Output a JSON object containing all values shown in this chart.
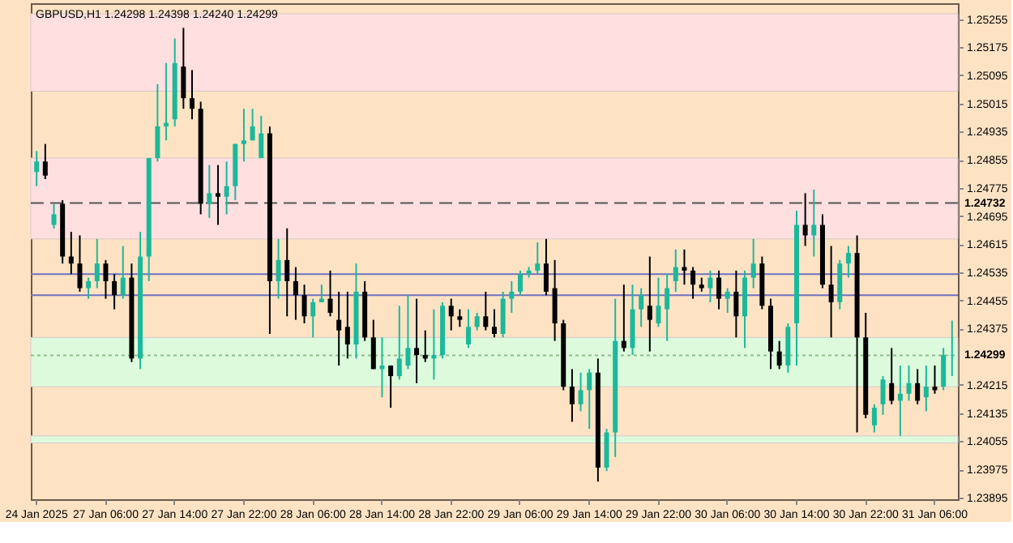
{
  "chart_data": {
    "type": "candlestick",
    "title": "GBPUSD,H1  1.24298 1.24398 1.24240 1.24299",
    "categories": [
      "24 Jan 2025",
      null,
      null,
      null,
      null,
      null,
      null,
      null,
      "27 Jan 06:00",
      null,
      null,
      null,
      null,
      null,
      null,
      null,
      "27 Jan 14:00",
      null,
      null,
      null,
      null,
      null,
      null,
      null,
      "27 Jan 22:00",
      null,
      null,
      null,
      null,
      null,
      null,
      null,
      "28 Jan 06:00",
      null,
      null,
      null,
      null,
      null,
      null,
      null,
      "28 Jan 14:00",
      null,
      null,
      null,
      null,
      null,
      null,
      null,
      "28 Jan 22:00",
      null,
      null,
      null,
      null,
      null,
      null,
      null,
      "29 Jan 06:00",
      null,
      null,
      null,
      null,
      null,
      null,
      null,
      "29 Jan 14:00",
      null,
      null,
      null,
      null,
      null,
      null,
      null,
      "29 Jan 22:00",
      null,
      null,
      null,
      null,
      null,
      null,
      null,
      "30 Jan 06:00",
      null,
      null,
      null,
      null,
      null,
      null,
      null,
      "30 Jan 14:00",
      null,
      null,
      null,
      null,
      null,
      null,
      null,
      "30 Jan 22:00",
      null,
      null,
      null,
      null,
      null,
      null,
      null,
      "31 Jan 06:00",
      null,
      null
    ],
    "ohlc": [
      [
        1.2482,
        1.2488,
        1.2478,
        1.2485
      ],
      [
        1.2485,
        1.249,
        1.248,
        1.2481
      ],
      [
        1.2467,
        1.2473,
        1.2466,
        1.247
      ],
      [
        1.2473,
        1.2474,
        1.2456,
        1.2458
      ],
      [
        1.2458,
        1.2465,
        1.2453,
        1.2456
      ],
      [
        1.2456,
        1.2464,
        1.2448,
        1.2449
      ],
      [
        1.2449,
        1.2452,
        1.2446,
        1.2451
      ],
      [
        1.2451,
        1.2463,
        1.2449,
        1.2456
      ],
      [
        1.2456,
        1.2457,
        1.2446,
        1.2451
      ],
      [
        1.2451,
        1.2453,
        1.2443,
        1.2447
      ],
      [
        1.2447,
        1.2461,
        1.2446,
        1.2452
      ],
      [
        1.2452,
        1.2456,
        1.2428,
        1.2429
      ],
      [
        1.2429,
        1.2465,
        1.2426,
        1.2458
      ],
      [
        1.2458,
        1.2486,
        1.2451,
        1.2486
      ],
      [
        1.2486,
        1.2507,
        1.2485,
        1.2495
      ],
      [
        1.2495,
        1.2513,
        1.2491,
        1.2496
      ],
      [
        1.2497,
        1.252,
        1.2495,
        1.2513
      ],
      [
        1.2512,
        1.2523,
        1.25,
        1.2503
      ],
      [
        1.2503,
        1.2511,
        1.2497,
        1.25
      ],
      [
        1.25,
        1.2502,
        1.247,
        1.2473
      ],
      [
        1.2473,
        1.2484,
        1.2469,
        1.2476
      ],
      [
        1.2476,
        1.2484,
        1.2467,
        1.2475
      ],
      [
        1.2475,
        1.2485,
        1.247,
        1.2478
      ],
      [
        1.2478,
        1.249,
        1.2474,
        1.249
      ],
      [
        1.249,
        1.25,
        1.2485,
        1.2491
      ],
      [
        1.2491,
        1.25,
        1.2491,
        1.2495
      ],
      [
        1.2486,
        1.2498,
        1.2486,
        1.2493
      ],
      [
        1.2493,
        1.2495,
        1.2436,
        1.2451
      ],
      [
        1.2451,
        1.2463,
        1.2446,
        1.2457
      ],
      [
        1.2457,
        1.2466,
        1.2441,
        1.2451
      ],
      [
        1.2451,
        1.2455,
        1.244,
        1.2447
      ],
      [
        1.2447,
        1.245,
        1.2439,
        1.2441
      ],
      [
        1.2441,
        1.2446,
        1.2435,
        1.2445
      ],
      [
        1.2445,
        1.245,
        1.2445,
        1.2446
      ],
      [
        1.2446,
        1.2454,
        1.2441,
        1.2442
      ],
      [
        1.244,
        1.2448,
        1.2427,
        1.2437
      ],
      [
        1.2438,
        1.2448,
        1.2429,
        1.2433
      ],
      [
        1.2433,
        1.2456,
        1.2429,
        1.2448
      ],
      [
        1.2448,
        1.2451,
        1.2434,
        1.2435
      ],
      [
        1.2435,
        1.244,
        1.2426,
        1.2426
      ],
      [
        1.2426,
        1.2435,
        1.2418,
        1.2427
      ],
      [
        1.2427,
        1.2427,
        1.2415,
        1.2424
      ],
      [
        1.2424,
        1.2444,
        1.2423,
        1.2429
      ],
      [
        1.2427,
        1.2447,
        1.2426,
        1.2432
      ],
      [
        1.2432,
        1.2446,
        1.2422,
        1.243
      ],
      [
        1.243,
        1.2437,
        1.2428,
        1.2429
      ],
      [
        1.2429,
        1.2443,
        1.2423,
        1.243
      ],
      [
        1.243,
        1.2445,
        1.2429,
        1.2444
      ],
      [
        1.2444,
        1.2446,
        1.2437,
        1.2441
      ],
      [
        1.2441,
        1.2443,
        1.2438,
        1.244
      ],
      [
        1.2433,
        1.2443,
        1.2432,
        1.2438
      ],
      [
        1.2438,
        1.2442,
        1.2437,
        1.2441
      ],
      [
        1.2441,
        1.2448,
        1.2437,
        1.2438
      ],
      [
        1.2438,
        1.2443,
        1.2435,
        1.2436
      ],
      [
        1.2436,
        1.2448,
        1.2435,
        1.2446
      ],
      [
        1.2446,
        1.2451,
        1.2442,
        1.2448
      ],
      [
        1.2448,
        1.2454,
        1.2447,
        1.2453
      ],
      [
        1.2453,
        1.2455,
        1.2452,
        1.2454
      ],
      [
        1.2454,
        1.2462,
        1.2453,
        1.2456
      ],
      [
        1.2456,
        1.2463,
        1.2447,
        1.2448
      ],
      [
        1.2449,
        1.2457,
        1.2434,
        1.2439
      ],
      [
        1.2439,
        1.244,
        1.242,
        1.2421
      ],
      [
        1.2421,
        1.2426,
        1.2411,
        1.2416
      ],
      [
        1.2416,
        1.2425,
        1.2414,
        1.242
      ],
      [
        1.242,
        1.2426,
        1.2409,
        1.2425
      ],
      [
        1.2425,
        1.2429,
        1.2394,
        1.2398
      ],
      [
        1.2398,
        1.2409,
        1.2397,
        1.2408
      ],
      [
        1.2408,
        1.2446,
        1.2401,
        1.2434
      ],
      [
        1.2434,
        1.245,
        1.2431,
        1.2432
      ],
      [
        1.2432,
        1.245,
        1.243,
        1.2443
      ],
      [
        1.2443,
        1.2449,
        1.2438,
        1.2447
      ],
      [
        1.2444,
        1.2458,
        1.2431,
        1.244
      ],
      [
        1.2439,
        1.2452,
        1.2438,
        1.2444
      ],
      [
        1.2443,
        1.2453,
        1.2434,
        1.2449
      ],
      [
        1.2451,
        1.246,
        1.2448,
        1.2455
      ],
      [
        1.2455,
        1.246,
        1.245,
        1.2454
      ],
      [
        1.2454,
        1.2455,
        1.2446,
        1.245
      ],
      [
        1.245,
        1.2452,
        1.2448,
        1.2449
      ],
      [
        1.2449,
        1.2454,
        1.2445,
        1.2452
      ],
      [
        1.2452,
        1.2454,
        1.2443,
        1.2446
      ],
      [
        1.2446,
        1.2449,
        1.2442,
        1.2448
      ],
      [
        1.2448,
        1.2454,
        1.2435,
        1.2441
      ],
      [
        1.2441,
        1.2454,
        1.2432,
        1.2452
      ],
      [
        1.2452,
        1.2463,
        1.2449,
        1.2456
      ],
      [
        1.2456,
        1.2458,
        1.2443,
        1.2444
      ],
      [
        1.2444,
        1.2446,
        1.2426,
        1.2431
      ],
      [
        1.2431,
        1.2434,
        1.2426,
        1.2427
      ],
      [
        1.2427,
        1.2439,
        1.2425,
        1.2438
      ],
      [
        1.2439,
        1.2471,
        1.2427,
        1.2467
      ],
      [
        1.2467,
        1.2476,
        1.2461,
        1.2464
      ],
      [
        1.2464,
        1.2477,
        1.2458,
        1.2467
      ],
      [
        1.2467,
        1.247,
        1.2449,
        1.245
      ],
      [
        1.245,
        1.2461,
        1.2435,
        1.2445
      ],
      [
        1.2445,
        1.2457,
        1.2443,
        1.2456
      ],
      [
        1.2456,
        1.2461,
        1.2452,
        1.2459
      ],
      [
        1.2459,
        1.2464,
        1.2408,
        1.2435
      ],
      [
        1.2435,
        1.2442,
        1.2412,
        1.2413
      ],
      [
        1.241,
        1.2416,
        1.2408,
        1.2415
      ],
      [
        1.2416,
        1.2424,
        1.2413,
        1.2423
      ],
      [
        1.2422,
        1.2432,
        1.2416,
        1.2417
      ],
      [
        1.2417,
        1.2427,
        1.2407,
        1.2419
      ],
      [
        1.2419,
        1.2427,
        1.2417,
        1.2422
      ],
      [
        1.2422,
        1.2426,
        1.2416,
        1.2417
      ],
      [
        1.2418,
        1.2427,
        1.2414,
        1.2421
      ],
      [
        1.2421,
        1.2427,
        1.2419,
        1.242
      ],
      [
        1.2421,
        1.2432,
        1.242,
        1.243
      ],
      [
        1.24298,
        1.24398,
        1.2424,
        1.24299
      ]
    ],
    "colors": [
      "#1cb89a",
      "#000000",
      "#1cb89a",
      "#000000",
      "#000000",
      "#000000",
      "#1cb89a",
      "#1cb89a",
      "#000000",
      "#000000",
      "#1cb89a",
      "#000000",
      "#1cb89a",
      "#1cb89a",
      "#1cb89a",
      "#1cb89a",
      "#1cb89a",
      "#000000",
      "#000000",
      "#000000",
      "#1cb89a",
      "#000000",
      "#1cb89a",
      "#1cb89a",
      "#1cb89a",
      "#1cb89a",
      "#1cb89a",
      "#000000",
      "#1cb89a",
      "#000000",
      "#000000",
      "#000000",
      "#1cb89a",
      "#1cb89a",
      "#000000",
      "#000000",
      "#000000",
      "#1cb89a",
      "#000000",
      "#000000",
      "#1cb89a",
      "#000000",
      "#1cb89a",
      "#1cb89a",
      "#000000",
      "#000000",
      "#1cb89a",
      "#1cb89a",
      "#000000",
      "#000000",
      "#1cb89a",
      "#1cb89a",
      "#000000",
      "#000000",
      "#1cb89a",
      "#1cb89a",
      "#1cb89a",
      "#1cb89a",
      "#1cb89a",
      "#000000",
      "#000000",
      "#000000",
      "#000000",
      "#1cb89a",
      "#1cb89a",
      "#000000",
      "#1cb89a",
      "#1cb89a",
      "#000000",
      "#1cb89a",
      "#1cb89a",
      "#000000",
      "#1cb89a",
      "#1cb89a",
      "#1cb89a",
      "#000000",
      "#000000",
      "#000000",
      "#1cb89a",
      "#000000",
      "#1cb89a",
      "#000000",
      "#1cb89a",
      "#1cb89a",
      "#000000",
      "#000000",
      "#000000",
      "#1cb89a",
      "#1cb89a",
      "#000000",
      "#1cb89a",
      "#000000",
      "#000000",
      "#1cb89a",
      "#1cb89a",
      "#000000",
      "#000000",
      "#1cb89a",
      "#1cb89a",
      "#000000",
      "#1cb89a",
      "#1cb89a",
      "#000000",
      "#1cb89a",
      "#000000",
      "#1cb89a",
      "#1cb89a"
    ],
    "ylim": [
      1.2389,
      1.253
    ],
    "yticks": [
      1.25255,
      1.25175,
      1.25095,
      1.25015,
      1.24935,
      1.24855,
      1.24775,
      1.24695,
      1.24615,
      1.24535,
      1.24455,
      1.24375,
      1.24215,
      1.24135,
      1.24055,
      1.23975,
      1.23895
    ],
    "bands": [
      {
        "axis": "y",
        "from": 1.2505,
        "to": 1.2527,
        "color": "#ffdfe0"
      },
      {
        "axis": "y",
        "from": 1.2463,
        "to": 1.2486,
        "color": "#ffdfe0"
      },
      {
        "axis": "y",
        "from": 1.2421,
        "to": 1.2435,
        "color": "#ddfadd"
      },
      {
        "axis": "y",
        "from": 1.2405,
        "to": 1.2407,
        "color": "#ddfadd"
      }
    ],
    "ref_lines": [
      {
        "axis": "y",
        "value": 1.24732,
        "label": "1.24732",
        "line_style": "dashed",
        "color": "#555555"
      },
      {
        "axis": "y",
        "value": 1.24299,
        "label": "1.24299",
        "line_style": "dotted",
        "color": "#8fbf8f"
      },
      {
        "axis": "y",
        "value": 1.2453,
        "color": "#7070c0",
        "line_style": "solid"
      },
      {
        "axis": "y",
        "value": 1.2447,
        "color": "#7070c0",
        "line_style": "solid"
      }
    ],
    "grid": false
  }
}
